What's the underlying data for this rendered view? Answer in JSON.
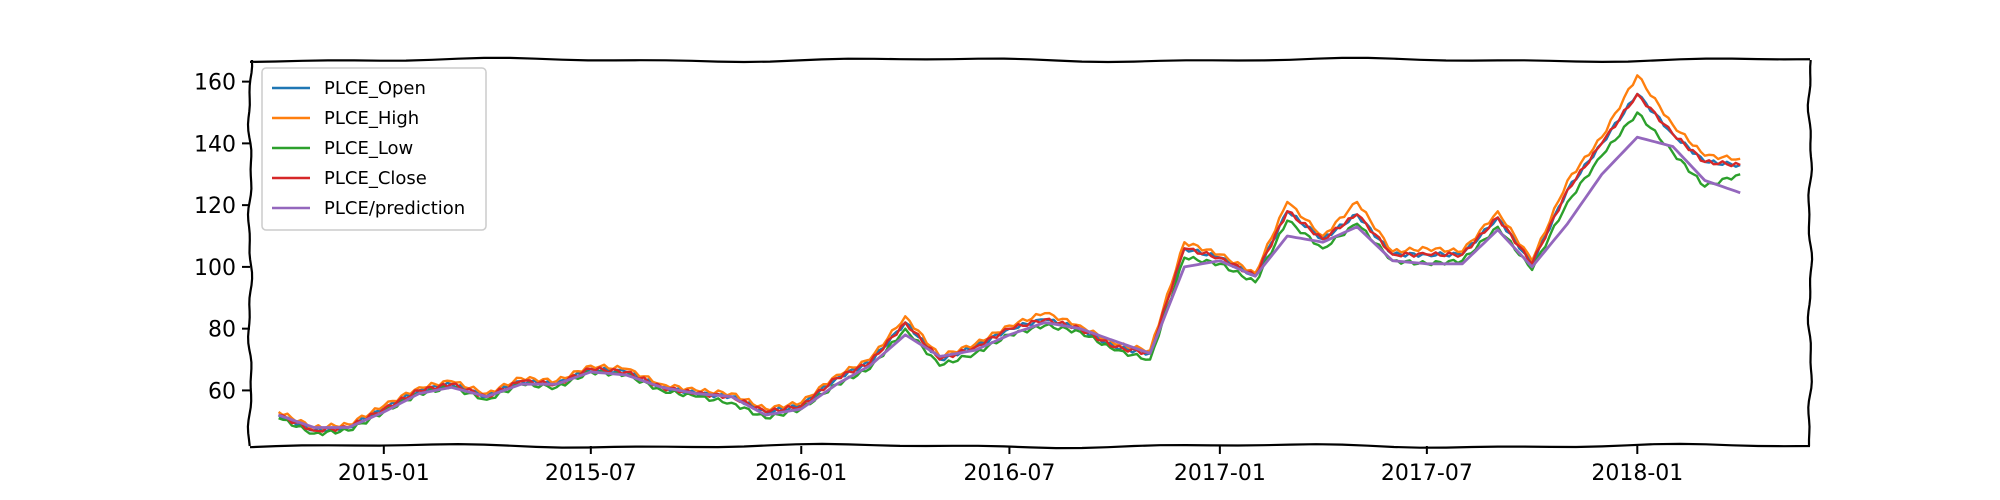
{
  "chart_data": {
    "type": "line",
    "title": "",
    "xlabel": "",
    "ylabel": "",
    "xlim": [
      "2014-09-06",
      "2018-06-01"
    ],
    "ylim": [
      42,
      167
    ],
    "grid": false,
    "legend_placement": "top-left",
    "x_ticks": [
      {
        "date": "2015-01-01",
        "label": "2015-01"
      },
      {
        "date": "2015-07-01",
        "label": "2015-07"
      },
      {
        "date": "2016-01-01",
        "label": "2016-01"
      },
      {
        "date": "2016-07-01",
        "label": "2016-07"
      },
      {
        "date": "2017-01-01",
        "label": "2017-01"
      },
      {
        "date": "2017-07-01",
        "label": "2017-07"
      },
      {
        "date": "2018-01-01",
        "label": "2018-01"
      }
    ],
    "y_ticks": [
      60,
      80,
      100,
      120,
      140,
      160
    ],
    "x": [
      "2014-10-01",
      "2014-11-01",
      "2014-12-01",
      "2015-01-01",
      "2015-02-01",
      "2015-03-01",
      "2015-04-01",
      "2015-05-01",
      "2015-06-01",
      "2015-07-01",
      "2015-08-01",
      "2015-09-01",
      "2015-10-01",
      "2015-11-01",
      "2015-12-01",
      "2016-01-01",
      "2016-02-01",
      "2016-03-01",
      "2016-04-01",
      "2016-05-01",
      "2016-06-01",
      "2016-07-01",
      "2016-08-01",
      "2016-09-01",
      "2016-10-01",
      "2016-11-01",
      "2016-12-01",
      "2017-01-01",
      "2017-02-01",
      "2017-03-01",
      "2017-04-01",
      "2017-05-01",
      "2017-06-01",
      "2017-07-01",
      "2017-08-01",
      "2017-09-01",
      "2017-10-01",
      "2017-11-01",
      "2017-12-01",
      "2018-01-01",
      "2018-02-01",
      "2018-03-01",
      "2018-04-01"
    ],
    "series": [
      {
        "name": "PLCE_Open",
        "color": "#1f77b4",
        "values": [
          52,
          47,
          48,
          54,
          60,
          62,
          58,
          63,
          62,
          67,
          66,
          61,
          59,
          58,
          53,
          55,
          64,
          69,
          82,
          70,
          74,
          80,
          83,
          80,
          74,
          72,
          106,
          103,
          97,
          118,
          109,
          117,
          104,
          104,
          104,
          116,
          101,
          125,
          140,
          156,
          143,
          134,
          133
        ]
      },
      {
        "name": "PLCE_High",
        "color": "#ff7f0e",
        "values": [
          53,
          48,
          49,
          55,
          61,
          63,
          59,
          64,
          63,
          68,
          67,
          62,
          60,
          59,
          54,
          56,
          65,
          70,
          84,
          71,
          75,
          81,
          85,
          81,
          75,
          73,
          108,
          104,
          98,
          121,
          110,
          121,
          105,
          106,
          105,
          118,
          102,
          128,
          142,
          162,
          146,
          136,
          135
        ]
      },
      {
        "name": "PLCE_Low",
        "color": "#2ca02c",
        "values": [
          51,
          46,
          47,
          53,
          59,
          61,
          57,
          62,
          61,
          66,
          65,
          60,
          58,
          56,
          51,
          54,
          62,
          67,
          80,
          68,
          72,
          78,
          81,
          79,
          73,
          70,
          103,
          101,
          95,
          115,
          106,
          114,
          102,
          101,
          102,
          113,
          99,
          121,
          136,
          150,
          137,
          126,
          130
        ]
      },
      {
        "name": "PLCE_Close",
        "color": "#d62728",
        "values": [
          52,
          47,
          48,
          54,
          60,
          62,
          58,
          63,
          62,
          67,
          66,
          61,
          59,
          58,
          53,
          55,
          64,
          69,
          82,
          70,
          74,
          80,
          83,
          80,
          74,
          72,
          106,
          103,
          97,
          118,
          109,
          117,
          104,
          104,
          104,
          116,
          101,
          125,
          140,
          156,
          143,
          134,
          133
        ]
      },
      {
        "name": "PLCE/prediction",
        "color": "#9467bd",
        "values": [
          52,
          48,
          48,
          53,
          59,
          61,
          58,
          62,
          62,
          66,
          65,
          61,
          59,
          58,
          52,
          54,
          62,
          68,
          78,
          71,
          73,
          78,
          82,
          80,
          76,
          72,
          100,
          102,
          97,
          110,
          108,
          113,
          102,
          101,
          101,
          112,
          100,
          114,
          130,
          142,
          139,
          128,
          124
        ]
      }
    ]
  }
}
